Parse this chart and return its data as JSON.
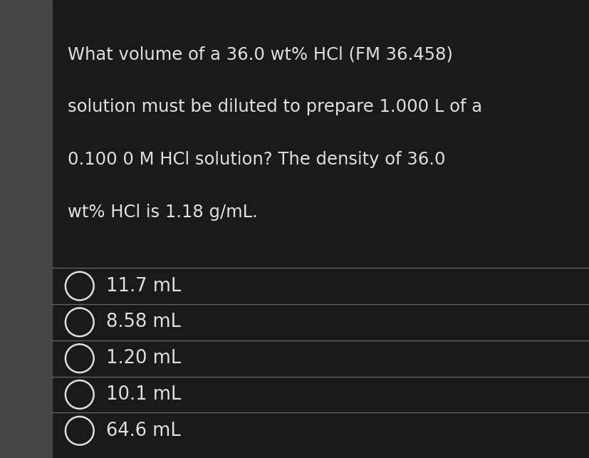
{
  "background_color": "#1a1a1a",
  "text_color": "#e0e0e0",
  "line_color": "#666666",
  "question_text": "What volume of a 36.0 wt% HCl (FM 36.458)\nsolution must be diluted to prepare 1.000 L of a\n0.100 0 M HCl solution? The density of 36.0\nwt% HCl is 1.18 g/mL.",
  "options": [
    "11.7 mL",
    "8.58 mL",
    "1.20 mL",
    "10.1 mL",
    "64.6 mL"
  ],
  "left_bar_color": "#444444",
  "font_size_question": 17.5,
  "font_size_options": 18.5,
  "fig_width": 8.28,
  "fig_height": 6.43,
  "dpi": 100
}
